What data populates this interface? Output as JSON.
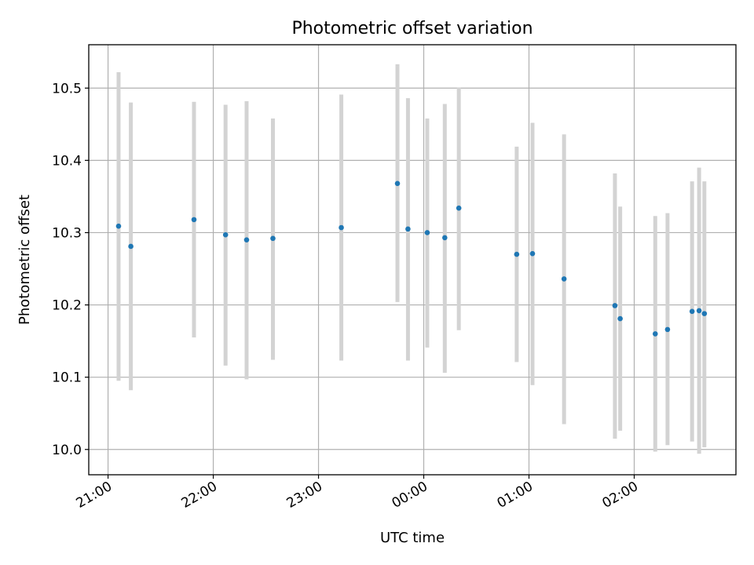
{
  "chart_data": {
    "type": "scatter",
    "title": "Photometric offset variation",
    "xlabel": "UTC time",
    "ylabel": "Photometric offset",
    "x_unit": "UTC time (HH:MM)",
    "xlim": [
      "20:49",
      "02:58"
    ],
    "ylim": [
      9.965,
      10.56
    ],
    "xticks": [
      "21:00",
      "22:00",
      "23:00",
      "00:00",
      "01:00",
      "02:00"
    ],
    "yticks": [
      10.0,
      10.1,
      10.2,
      10.3,
      10.4,
      10.5
    ],
    "grid": true,
    "marker_color": "#1f77b4",
    "errorbar_color": "#d3d3d3",
    "points": [
      {
        "time": "21:06",
        "y": 10.309,
        "ylow": 10.095,
        "yhigh": 10.522
      },
      {
        "time": "21:13",
        "y": 10.281,
        "ylow": 10.082,
        "yhigh": 10.48
      },
      {
        "time": "21:49",
        "y": 10.318,
        "ylow": 10.155,
        "yhigh": 10.481
      },
      {
        "time": "22:07",
        "y": 10.297,
        "ylow": 10.116,
        "yhigh": 10.477
      },
      {
        "time": "22:19",
        "y": 10.29,
        "ylow": 10.097,
        "yhigh": 10.482
      },
      {
        "time": "22:34",
        "y": 10.292,
        "ylow": 10.124,
        "yhigh": 10.458
      },
      {
        "time": "23:13",
        "y": 10.307,
        "ylow": 10.123,
        "yhigh": 10.491
      },
      {
        "time": "23:45",
        "y": 10.368,
        "ylow": 10.204,
        "yhigh": 10.533
      },
      {
        "time": "23:51",
        "y": 10.305,
        "ylow": 10.123,
        "yhigh": 10.486
      },
      {
        "time": "00:02",
        "y": 10.3,
        "ylow": 10.141,
        "yhigh": 10.458
      },
      {
        "time": "00:12",
        "y": 10.293,
        "ylow": 10.106,
        "yhigh": 10.478
      },
      {
        "time": "00:20",
        "y": 10.334,
        "ylow": 10.165,
        "yhigh": 10.501
      },
      {
        "time": "00:53",
        "y": 10.27,
        "ylow": 10.121,
        "yhigh": 10.419
      },
      {
        "time": "01:02",
        "y": 10.271,
        "ylow": 10.089,
        "yhigh": 10.452
      },
      {
        "time": "01:20",
        "y": 10.236,
        "ylow": 10.035,
        "yhigh": 10.436
      },
      {
        "time": "01:49",
        "y": 10.199,
        "ylow": 10.015,
        "yhigh": 10.382
      },
      {
        "time": "01:52",
        "y": 10.181,
        "ylow": 10.026,
        "yhigh": 10.336
      },
      {
        "time": "02:12",
        "y": 10.16,
        "ylow": 9.997,
        "yhigh": 10.323
      },
      {
        "time": "02:19",
        "y": 10.166,
        "ylow": 10.006,
        "yhigh": 10.327
      },
      {
        "time": "02:33",
        "y": 10.191,
        "ylow": 10.011,
        "yhigh": 10.371
      },
      {
        "time": "02:37",
        "y": 10.192,
        "ylow": 9.994,
        "yhigh": 10.39
      },
      {
        "time": "02:40",
        "y": 10.188,
        "ylow": 10.003,
        "yhigh": 10.371
      }
    ]
  }
}
